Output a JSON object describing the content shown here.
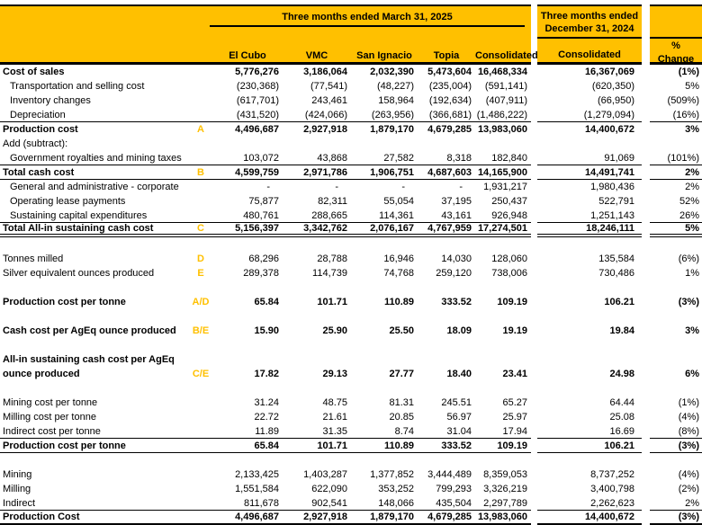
{
  "colors": {
    "gold": "#FFC000",
    "letter_label": "#FFC000",
    "rule": "#000000"
  },
  "header": {
    "group_2025": "Three months ended March 31, 2025",
    "group_2024_line1": "Three months ended",
    "group_2024_line2": "December 31, 2024",
    "columns": [
      "El Cubo",
      "VMC",
      "San Ignacio",
      "Topia",
      "Consolidated"
    ],
    "col_2024": "Consolidated",
    "pct_line1": "%",
    "pct_line2": "Change"
  },
  "rows": [
    {
      "label": "Cost of sales",
      "bold": true,
      "values": [
        "5,776,276",
        "3,186,064",
        "2,032,390",
        "5,473,604",
        "16,468,334"
      ],
      "dec": "16,367,069",
      "pct": "(1%)"
    },
    {
      "label": "Transportation and selling cost",
      "indent": true,
      "values": [
        "(230,368)",
        "(77,541)",
        "(48,227)",
        "(235,004)",
        "(591,141)"
      ],
      "dec": "(620,350)",
      "pct": "5%"
    },
    {
      "label": "Inventory changes",
      "indent": true,
      "values": [
        "(617,701)",
        "243,461",
        "158,964",
        "(192,634)",
        "(407,911)"
      ],
      "dec": "(66,950)",
      "pct": "(509%)"
    },
    {
      "label": "Depreciation",
      "indent": true,
      "values": [
        "(431,520)",
        "(424,066)",
        "(263,956)",
        "(366,681)",
        "(1,486,222)"
      ],
      "dec": "(1,279,094)",
      "pct": "(16%)",
      "rule": "single"
    },
    {
      "label": "Production cost",
      "letter": "A",
      "bold": true,
      "values": [
        "4,496,687",
        "2,927,918",
        "1,879,170",
        "4,679,285",
        "13,983,060"
      ],
      "dec": "14,400,672",
      "pct": "3%"
    },
    {
      "label": "Add (subtract):"
    },
    {
      "label": "Government royalties and mining taxes",
      "indent": true,
      "values": [
        "103,072",
        "43,868",
        "27,582",
        "8,318",
        "182,840"
      ],
      "dec": "91,069",
      "pct": "(101%)",
      "rule": "single"
    },
    {
      "label": "Total cash cost",
      "letter": "B",
      "bold": true,
      "values": [
        "4,599,759",
        "2,971,786",
        "1,906,751",
        "4,687,603",
        "14,165,900"
      ],
      "dec": "14,491,741",
      "pct": "2%",
      "rule": "single"
    },
    {
      "label": "General and administrative - corporate",
      "indent": true,
      "values": [
        "-",
        "-",
        "-",
        "-",
        "1,931,217"
      ],
      "dec": "1,980,436",
      "pct": "2%"
    },
    {
      "label": "Operating lease payments",
      "indent": true,
      "values": [
        "75,877",
        "82,311",
        "55,054",
        "37,195",
        "250,437"
      ],
      "dec": "522,791",
      "pct": "52%"
    },
    {
      "label": "Sustaining capital expenditures",
      "indent": true,
      "values": [
        "480,761",
        "288,665",
        "114,361",
        "43,161",
        "926,948"
      ],
      "dec": "1,251,143",
      "pct": "26%",
      "rule": "single"
    },
    {
      "label": "Total All-in sustaining cash cost",
      "letter": "C",
      "bold": true,
      "values": [
        "5,156,397",
        "3,342,762",
        "2,076,167",
        "4,767,959",
        "17,274,501"
      ],
      "dec": "18,246,111",
      "pct": "5%",
      "rule": "double"
    },
    {
      "blank": true
    },
    {
      "label": "Tonnes milled",
      "letter": "D",
      "values": [
        "68,296",
        "28,788",
        "16,946",
        "14,030",
        "128,060"
      ],
      "dec": "135,584",
      "pct": "(6%)"
    },
    {
      "label": "Silver equivalent ounces produced",
      "letter": "E",
      "values": [
        "289,378",
        "114,739",
        "74,768",
        "259,120",
        "738,006"
      ],
      "dec": "730,486",
      "pct": "1%"
    },
    {
      "blank": true
    },
    {
      "label": "Production cost per tonne",
      "letter": "A/D",
      "bold": true,
      "values": [
        "65.84",
        "101.71",
        "110.89",
        "333.52",
        "109.19"
      ],
      "dec": "106.21",
      "pct": "(3%)"
    },
    {
      "blank": true
    },
    {
      "label": "Cash cost per AgEq ounce produced",
      "letter": "B/E",
      "bold": true,
      "values": [
        "15.90",
        "25.90",
        "25.50",
        "18.09",
        "19.19"
      ],
      "dec": "19.84",
      "pct": "3%"
    },
    {
      "blank": true
    },
    {
      "label": "All-in sustaining cash cost per AgEq",
      "bold": true
    },
    {
      "label": "ounce produced",
      "letter": "C/E",
      "bold": true,
      "values": [
        "17.82",
        "29.13",
        "27.77",
        "18.40",
        "23.41"
      ],
      "dec": "24.98",
      "pct": "6%"
    },
    {
      "blank": true
    },
    {
      "label": "Mining cost per tonne",
      "values": [
        "31.24",
        "48.75",
        "81.31",
        "245.51",
        "65.27"
      ],
      "dec": "64.44",
      "pct": "(1%)"
    },
    {
      "label": "Milling cost per tonne",
      "values": [
        "22.72",
        "21.61",
        "20.85",
        "56.97",
        "25.97"
      ],
      "dec": "25.08",
      "pct": "(4%)"
    },
    {
      "label": "Indirect cost per tonne",
      "values": [
        "11.89",
        "31.35",
        "8.74",
        "31.04",
        "17.94"
      ],
      "dec": "16.69",
      "pct": "(8%)",
      "rule": "single"
    },
    {
      "label": "Production cost per tonne",
      "bold": true,
      "values": [
        "65.84",
        "101.71",
        "110.89",
        "333.52",
        "109.19"
      ],
      "dec": "106.21",
      "pct": "(3%)",
      "rule": "single"
    },
    {
      "blank": true
    },
    {
      "label": "Mining",
      "values": [
        "2,133,425",
        "1,403,287",
        "1,377,852",
        "3,444,489",
        "8,359,053"
      ],
      "dec": "8,737,252",
      "pct": "(4%)"
    },
    {
      "label": "Milling",
      "values": [
        "1,551,584",
        "622,090",
        "353,252",
        "799,293",
        "3,326,219"
      ],
      "dec": "3,400,798",
      "pct": "(2%)"
    },
    {
      "label": "Indirect",
      "values": [
        "811,678",
        "902,541",
        "148,066",
        "435,504",
        "2,297,789"
      ],
      "dec": "2,262,623",
      "pct": "2%",
      "rule": "single"
    },
    {
      "label": "Production Cost",
      "bold": true,
      "values": [
        "4,496,687",
        "2,927,918",
        "1,879,170",
        "4,679,285",
        "13,983,060"
      ],
      "dec": "14,400,672",
      "pct": "(3%)",
      "rule": "thick"
    }
  ]
}
